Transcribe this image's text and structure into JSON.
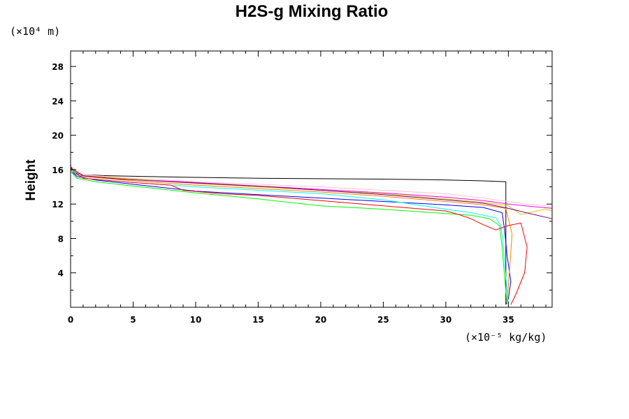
{
  "chart_data": {
    "type": "line",
    "title": "H2S-g Mixing Ratio",
    "ylabel": "Height",
    "y_unit": "(×10⁴ m)",
    "x_unit": "(×10⁻⁵ kg/kg)",
    "xlim": [
      0,
      38.5
    ],
    "ylim": [
      0,
      29.8
    ],
    "xticks": [
      0,
      5,
      10,
      15,
      20,
      25,
      30,
      35
    ],
    "yticks": [
      4,
      8,
      12,
      16,
      20,
      24,
      28
    ],
    "grid": false,
    "series": [
      {
        "color": "#000000",
        "x": [
          0,
          0.3,
          1,
          3,
          6,
          10,
          15,
          20,
          25,
          30,
          33,
          34.8,
          34.8
        ],
        "y": [
          16.5,
          15.6,
          15.4,
          15.3,
          15.2,
          15.1,
          15.0,
          14.95,
          14.9,
          14.8,
          14.7,
          14.6,
          0.3
        ]
      },
      {
        "color": "#ff00ff",
        "x": [
          0,
          0.2,
          1,
          3,
          6,
          10,
          15,
          20,
          25,
          30,
          33,
          35,
          37,
          38.5
        ],
        "y": [
          16.3,
          15.5,
          15.2,
          15.0,
          14.8,
          14.5,
          14.1,
          13.7,
          13.3,
          12.8,
          12.4,
          12.0,
          11.7,
          11.5
        ]
      },
      {
        "color": "#0000ff",
        "x": [
          0,
          0.5,
          2,
          5,
          10,
          15,
          20,
          25,
          30,
          33,
          34.5,
          34.7,
          34.9,
          35.2,
          35.0,
          34.8
        ],
        "y": [
          16.0,
          15.2,
          14.8,
          14.3,
          13.5,
          13.1,
          12.7,
          12.3,
          11.9,
          11.6,
          11.0,
          9.0,
          6.0,
          3.0,
          1.0,
          0.3
        ]
      },
      {
        "color": "#00ff00",
        "x": [
          0,
          0.5,
          2,
          5,
          10,
          15,
          20,
          25,
          30,
          32,
          33.5,
          34.3,
          34.5,
          34.7,
          34.9
        ],
        "y": [
          15.8,
          15.0,
          14.6,
          14.1,
          13.3,
          12.6,
          11.8,
          11.4,
          10.9,
          10.7,
          10.3,
          9.5,
          7.0,
          3.5,
          0.4
        ]
      },
      {
        "color": "#00ffff",
        "x": [
          0,
          1,
          5,
          10,
          15,
          20,
          25,
          30,
          32,
          34,
          34.4,
          34.6,
          34.8,
          35.0
        ],
        "y": [
          15.9,
          15.0,
          14.5,
          14.0,
          13.6,
          13.2,
          12.5,
          11.4,
          11.0,
          10.4,
          9.5,
          7.0,
          3.5,
          0.4
        ]
      },
      {
        "color": "#ff8000",
        "x": [
          0,
          1,
          5,
          10,
          15,
          20,
          25,
          30,
          33,
          34.8,
          35.3,
          35.1,
          34.9
        ],
        "y": [
          16.2,
          15.2,
          14.7,
          14.2,
          13.8,
          13.4,
          12.9,
          12.3,
          11.9,
          11.5,
          8.5,
          4.5,
          0.6
        ]
      },
      {
        "color": "#ff0000",
        "x": [
          0,
          1,
          5,
          8,
          9,
          12,
          15,
          20,
          25,
          30,
          31,
          32,
          33,
          34,
          35,
          36,
          36.5,
          36.3,
          35.6,
          35.2
        ],
        "y": [
          16.1,
          15.0,
          14.5,
          14.2,
          13.6,
          13.2,
          13.0,
          12.4,
          11.8,
          11.2,
          10.8,
          10.3,
          9.6,
          9.0,
          9.5,
          9.8,
          7.0,
          4.0,
          1.5,
          0.3
        ]
      },
      {
        "color": "#ffc0cb",
        "x": [
          0,
          1,
          5,
          10,
          15,
          20,
          25,
          30,
          33,
          35,
          36.5,
          38,
          38.5
        ],
        "y": [
          16.4,
          15.4,
          15.0,
          14.6,
          14.3,
          14.0,
          13.6,
          13.2,
          12.7,
          12.3,
          12.0,
          11.8,
          11.6
        ]
      },
      {
        "color": "#cccc00",
        "x": [
          0,
          1,
          5,
          10,
          15,
          20,
          25,
          30,
          33,
          35,
          36,
          38,
          38.5
        ],
        "y": [
          16.0,
          15.3,
          14.9,
          14.4,
          14.0,
          13.6,
          13.2,
          12.6,
          12.2,
          11.8,
          10.8,
          11.4,
          11.2
        ]
      },
      {
        "color": "#800080",
        "x": [
          0,
          1,
          4,
          8,
          12,
          16,
          20,
          25,
          30,
          33,
          35,
          37,
          38.5
        ],
        "y": [
          16.2,
          15.3,
          14.9,
          14.6,
          14.3,
          14.0,
          13.6,
          13.1,
          12.5,
          12.1,
          11.5,
          10.8,
          10.3
        ]
      }
    ]
  }
}
